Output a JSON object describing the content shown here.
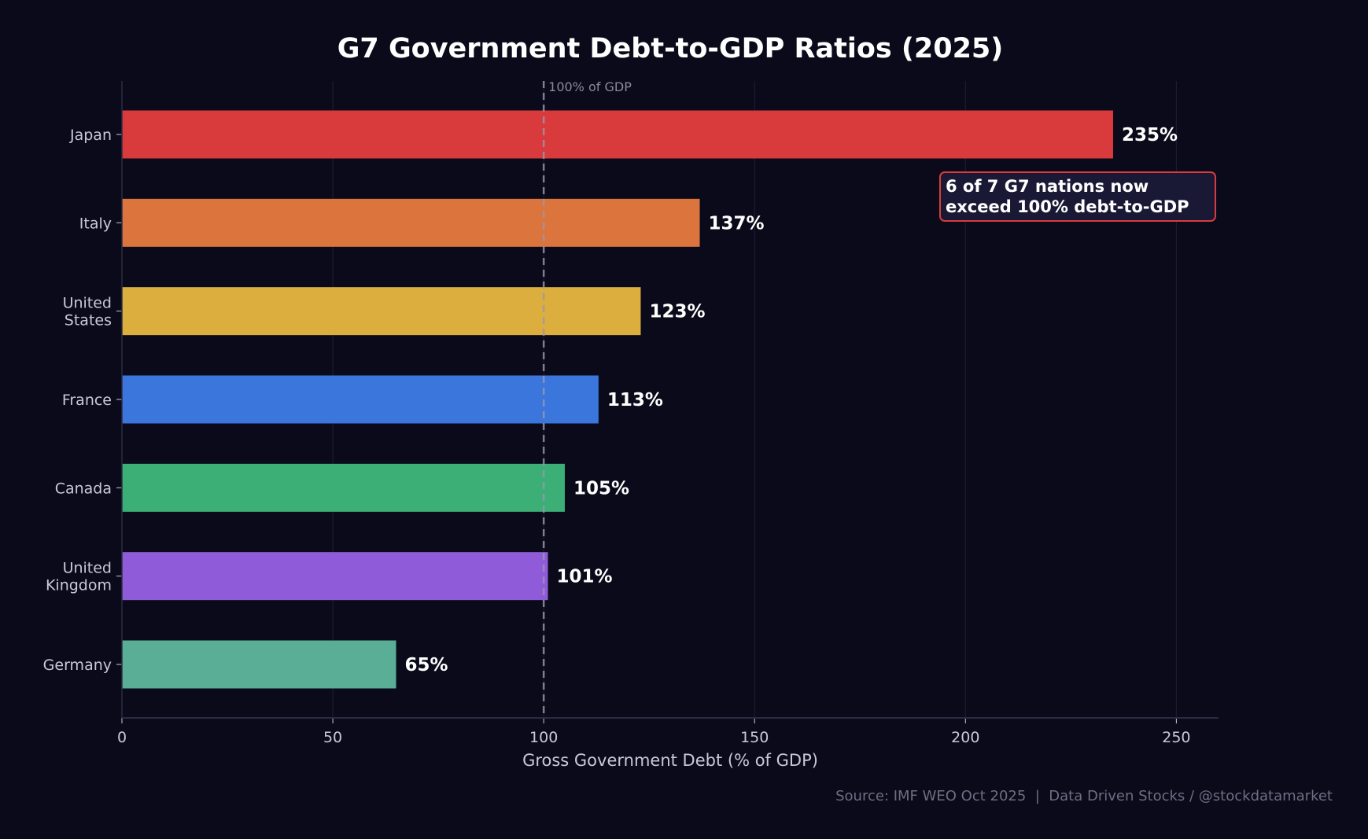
{
  "chart_data": {
    "type": "bar",
    "orientation": "horizontal",
    "title": "G7 Government Debt-to-GDP Ratios (2025)",
    "xlabel": "Gross Government Debt (% of GDP)",
    "ylabel": "",
    "xlim": [
      0,
      260
    ],
    "xticks": [
      0,
      50,
      100,
      150,
      200,
      250
    ],
    "grid": true,
    "categories": [
      "Japan",
      "Italy",
      "United States",
      "France",
      "Canada",
      "United Kingdom",
      "Germany"
    ],
    "category_lines": [
      [
        "Japan"
      ],
      [
        "Italy"
      ],
      [
        "United",
        "States"
      ],
      [
        "France"
      ],
      [
        "Canada"
      ],
      [
        "United",
        "Kingdom"
      ],
      [
        "Germany"
      ]
    ],
    "values": [
      235,
      137,
      123,
      113,
      105,
      101,
      65
    ],
    "value_labels": [
      "235%",
      "137%",
      "123%",
      "113%",
      "105%",
      "101%",
      "65%"
    ],
    "colors": [
      "#d93b3d",
      "#db743d",
      "#dbae3d",
      "#3b76dc",
      "#3caf77",
      "#905bd9",
      "#5aae96"
    ],
    "reference_line": {
      "value": 100,
      "label": "100% of GDP"
    },
    "annotation": {
      "lines": [
        "6 of 7 G7 nations now",
        "exceed 100% debt-to-GDP"
      ],
      "border_color": "#d93b3d"
    },
    "source": "Source: IMF WEO Oct 2025  |  Data Driven Stocks / @stockdatamarket"
  },
  "theme": {
    "background": "#0b0a1a",
    "axis": "#2a2a44",
    "text": "#c9c9d6"
  }
}
